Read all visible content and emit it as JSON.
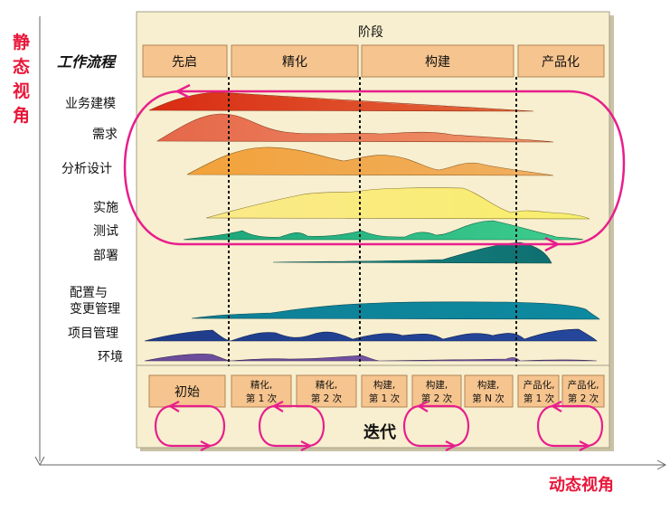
{
  "axes": {
    "static_view": [
      "静",
      "态",
      "视",
      "角"
    ],
    "dynamic_view": "动态视角"
  },
  "header": {
    "title": "阶段",
    "workflow_label": "工作流程",
    "phases": [
      "先启",
      "精化",
      "构建",
      "产品化"
    ]
  },
  "workflows": [
    "业务建模",
    "需求",
    "分析设计",
    "实施",
    "测试",
    "部署",
    "配置与",
    "变更管理",
    "项目管理",
    "环境"
  ],
  "iterations": {
    "label": "迭代",
    "items": [
      {
        "line1": "初始",
        "line2": ""
      },
      {
        "line1": "精化,",
        "line2": "第 1 次"
      },
      {
        "line1": "精化,",
        "line2": "第 2 次"
      },
      {
        "line1": "构建,",
        "line2": "第 1 次"
      },
      {
        "line1": "构建,",
        "line2": "第 2 次"
      },
      {
        "line1": "构建,",
        "line2": "第 N 次"
      },
      {
        "line1": "产品化,",
        "line2": "第 1 次"
      },
      {
        "line1": "产品化,",
        "line2": "第 2 次"
      }
    ]
  },
  "colors": {
    "panel_bg": "#f7efcf",
    "box_fill": "#f6c48e",
    "accent_red": "#e8173a",
    "loop_pink": "#e81e8c"
  }
}
